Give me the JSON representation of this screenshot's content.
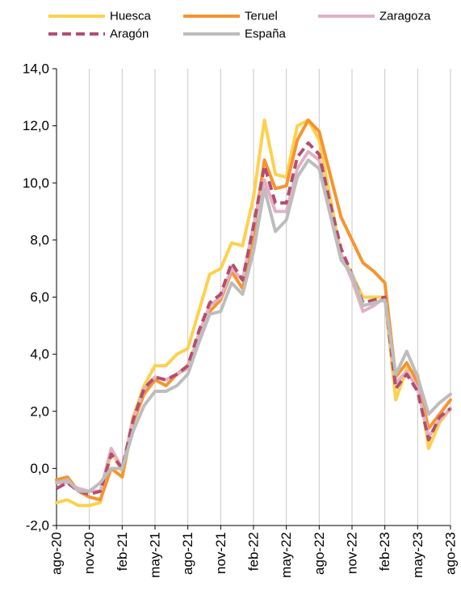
{
  "chart_data": {
    "type": "line",
    "title": "",
    "xlabel": "",
    "ylabel": "",
    "ylim": [
      -2,
      14
    ],
    "yticks": [
      "-2,0",
      "0,0",
      "2,0",
      "4,0",
      "6,0",
      "8,0",
      "10,0",
      "12,0",
      "14,0"
    ],
    "grid": "vertical",
    "legend": "top",
    "categories": [
      "ago-20",
      "sep-20",
      "oct-20",
      "nov-20",
      "dic-20",
      "ene-21",
      "feb-21",
      "mar-21",
      "abr-21",
      "may-21",
      "jun-21",
      "jul-21",
      "ago-21",
      "sep-21",
      "oct-21",
      "nov-21",
      "dic-21",
      "ene-22",
      "feb-22",
      "mar-22",
      "abr-22",
      "may-22",
      "jun-22",
      "jul-22",
      "ago-22",
      "sep-22",
      "oct-22",
      "nov-22",
      "dic-22",
      "ene-23",
      "feb-23",
      "mar-23",
      "abr-23",
      "may-23",
      "jun-23",
      "jul-23",
      "ago-23"
    ],
    "xtick_labels": [
      "ago-20",
      "nov-20",
      "feb-21",
      "may-21",
      "ago-21",
      "nov-21",
      "feb-22",
      "may-22",
      "ago-22",
      "nov-22",
      "feb-23",
      "may-23",
      "ago-23"
    ],
    "series": [
      {
        "name": "Huesca",
        "color": "#FDD14F",
        "dash": "solid",
        "values": [
          -1.2,
          -1.1,
          -1.3,
          -1.3,
          -1.2,
          0.6,
          -0.1,
          1.8,
          2.9,
          3.6,
          3.6,
          4.0,
          4.2,
          5.5,
          6.8,
          7.0,
          7.9,
          7.8,
          9.5,
          12.2,
          10.3,
          10.2,
          12.0,
          12.2,
          11.5,
          9.5,
          7.5,
          6.8,
          6.0,
          6.0,
          6.0,
          2.4,
          3.5,
          3.3,
          0.7,
          1.6,
          2.1
        ]
      },
      {
        "name": "Teruel",
        "color": "#F79431",
        "dash": "solid",
        "values": [
          -0.4,
          -0.3,
          -0.8,
          -1.0,
          -1.1,
          0.0,
          -0.3,
          1.6,
          2.6,
          3.1,
          2.9,
          3.3,
          3.6,
          4.6,
          5.5,
          5.9,
          6.9,
          6.3,
          8.2,
          10.8,
          9.8,
          9.9,
          11.5,
          12.2,
          11.8,
          10.3,
          8.8,
          8.0,
          7.2,
          6.9,
          6.5,
          3.2,
          3.7,
          3.0,
          1.4,
          1.9,
          2.4
        ]
      },
      {
        "name": "Zaragoza",
        "color": "#E3B1C4",
        "dash": "solid",
        "values": [
          -0.5,
          -0.5,
          -0.7,
          -0.8,
          -0.8,
          0.7,
          0.0,
          1.7,
          2.8,
          3.2,
          3.1,
          3.3,
          3.5,
          4.7,
          5.7,
          6.0,
          7.0,
          6.6,
          8.5,
          10.1,
          9.0,
          9.0,
          10.5,
          11.1,
          10.8,
          9.0,
          7.5,
          6.6,
          5.5,
          5.7,
          6.0,
          3.0,
          3.4,
          2.8,
          1.1,
          1.7,
          2.1
        ]
      },
      {
        "name": "Aragón",
        "color": "#B34F6E",
        "dash": "dashed",
        "values": [
          -0.7,
          -0.5,
          -0.8,
          -0.9,
          -0.8,
          0.5,
          0.0,
          1.7,
          2.8,
          3.2,
          3.1,
          3.3,
          3.6,
          4.8,
          5.8,
          6.1,
          7.2,
          6.6,
          8.5,
          10.6,
          9.3,
          9.3,
          10.9,
          11.4,
          11.0,
          9.3,
          7.7,
          6.8,
          5.8,
          5.9,
          6.0,
          2.8,
          3.3,
          2.7,
          1.0,
          1.8,
          2.1
        ]
      },
      {
        "name": "España",
        "color": "#BDBDBD",
        "dash": "solid",
        "values": [
          -0.5,
          -0.4,
          -0.8,
          -0.8,
          -0.5,
          0.0,
          0.0,
          1.3,
          2.2,
          2.7,
          2.7,
          2.9,
          3.3,
          4.4,
          5.4,
          5.5,
          6.5,
          6.1,
          7.6,
          9.8,
          8.3,
          8.7,
          10.2,
          10.8,
          10.5,
          8.9,
          7.3,
          6.8,
          5.7,
          5.8,
          5.9,
          3.3,
          4.1,
          3.2,
          1.9,
          2.3,
          2.6
        ]
      }
    ]
  }
}
